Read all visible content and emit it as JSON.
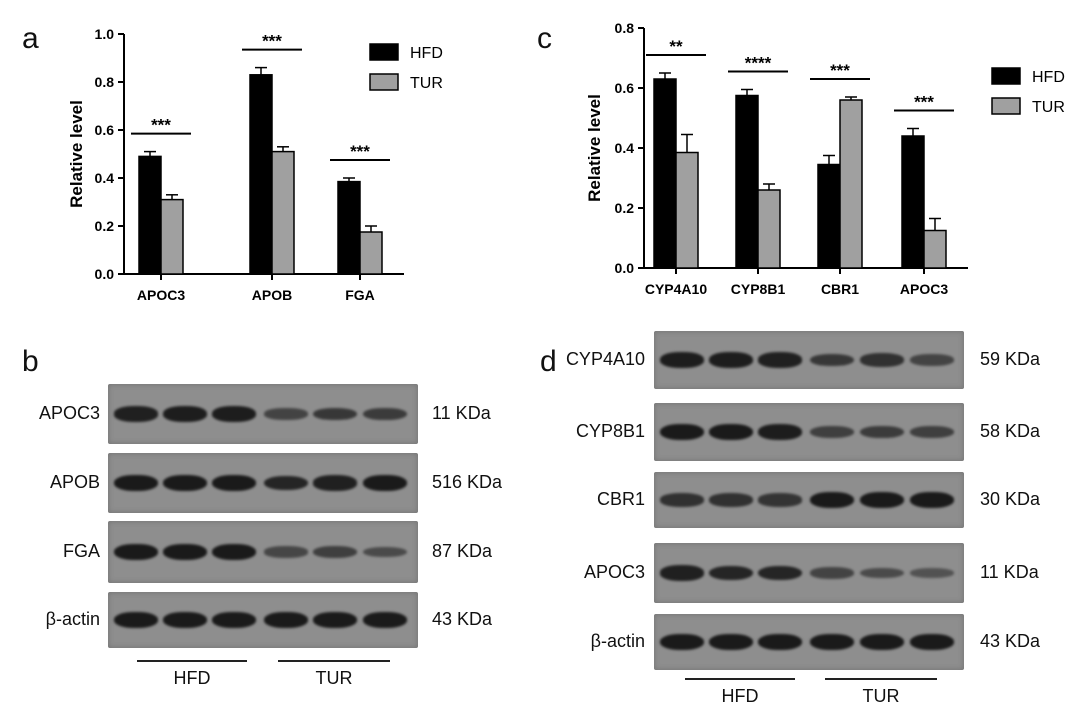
{
  "panels": {
    "a": "a",
    "b": "b",
    "c": "c",
    "d": "d"
  },
  "chart_data": [
    {
      "type": "bar",
      "categories": [
        "APOC3",
        "APOB",
        "FGA"
      ],
      "series": [
        {
          "name": "HFD",
          "values": [
            0.49,
            0.83,
            0.385
          ],
          "errors": [
            0.02,
            0.03,
            0.015
          ],
          "color": "#000000"
        },
        {
          "name": "TUR",
          "values": [
            0.31,
            0.51,
            0.175
          ],
          "errors": [
            0.02,
            0.02,
            0.025
          ],
          "color": "#a0a0a0"
        }
      ],
      "significance": [
        "***",
        "***",
        "***"
      ],
      "ylabel": "Relative level",
      "ylim": [
        0,
        1.0
      ],
      "yticks": [
        "0.0",
        "0.2",
        "0.4",
        "0.6",
        "0.8",
        "1.0"
      ],
      "legend_position": "top-right"
    },
    {
      "type": "bar",
      "categories": [
        "CYP4A10",
        "CYP8B1",
        "CBR1",
        "APOC3"
      ],
      "series": [
        {
          "name": "HFD",
          "values": [
            0.63,
            0.575,
            0.345,
            0.44
          ],
          "errors": [
            0.02,
            0.02,
            0.03,
            0.025
          ],
          "color": "#000000"
        },
        {
          "name": "TUR",
          "values": [
            0.385,
            0.26,
            0.56,
            0.125
          ],
          "errors": [
            0.06,
            0.02,
            0.01,
            0.04
          ],
          "color": "#a0a0a0"
        }
      ],
      "significance": [
        "**",
        "****",
        "***",
        "***"
      ],
      "ylabel": "Relative level",
      "ylim": [
        0,
        0.8
      ],
      "yticks": [
        "0.0",
        "0.2",
        "0.4",
        "0.6",
        "0.8"
      ],
      "legend_position": "top-right"
    }
  ],
  "blot_b": {
    "rows": [
      {
        "label": "APOC3",
        "kda": "11 KDa",
        "bands": [
          0.9,
          0.95,
          0.95,
          0.45,
          0.6,
          0.55
        ]
      },
      {
        "label": "APOB",
        "kda": "516 KDa",
        "bands": [
          1,
          1,
          1,
          0.85,
          0.9,
          1
        ]
      },
      {
        "label": "FGA",
        "kda": "87 KDa",
        "bands": [
          1,
          1,
          1,
          0.4,
          0.5,
          0.35
        ]
      },
      {
        "label": "β-actin",
        "kda": "43 KDa",
        "bands": [
          1,
          1,
          1,
          1,
          1,
          1
        ]
      }
    ],
    "groups": [
      "HFD",
      "TUR"
    ]
  },
  "blot_d": {
    "rows": [
      {
        "label": "CYP4A10",
        "kda": "59 KDa",
        "bands": [
          0.95,
          0.95,
          0.9,
          0.6,
          0.7,
          0.45
        ]
      },
      {
        "label": "CYP8B1",
        "kda": "58 KDa",
        "bands": [
          1,
          1,
          0.95,
          0.5,
          0.55,
          0.5
        ]
      },
      {
        "label": "CBR1",
        "kda": "30 KDa",
        "bands": [
          0.7,
          0.7,
          0.65,
          1,
          1,
          1
        ]
      },
      {
        "label": "APOC3",
        "kda": "11 KDa",
        "bands": [
          0.9,
          0.85,
          0.85,
          0.45,
          0.35,
          0.25
        ]
      },
      {
        "label": "β-actin",
        "kda": "43 KDa",
        "bands": [
          1,
          1,
          1,
          1,
          1,
          1
        ]
      }
    ],
    "groups": [
      "HFD",
      "TUR"
    ]
  }
}
